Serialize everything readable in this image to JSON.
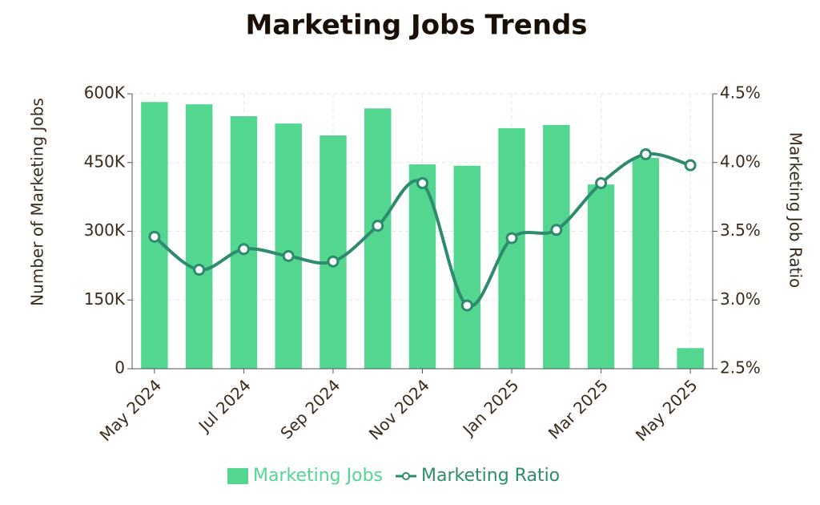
{
  "chart_data": {
    "type": "bar-line",
    "title": "Marketing Jobs Trends",
    "categories": [
      "May 2024",
      null,
      "Jul 2024",
      null,
      "Sep 2024",
      null,
      "Nov 2024",
      null,
      "Jan 2025",
      null,
      "Mar 2025",
      null,
      "May 2025"
    ],
    "series": [
      {
        "name": "Marketing Jobs",
        "type": "bar",
        "color": "#52d690",
        "values": [
          582000,
          577000,
          551000,
          535000,
          509000,
          568000,
          446000,
          443000,
          525000,
          532000,
          402000,
          460000,
          45000
        ]
      },
      {
        "name": "Marketing Ratio",
        "type": "line",
        "axis": "y2",
        "color": "#2e8b6e",
        "values": [
          3.46,
          3.22,
          3.37,
          3.32,
          3.28,
          3.54,
          3.85,
          2.96,
          3.45,
          3.51,
          3.85,
          4.06,
          3.98
        ]
      }
    ],
    "ylabel": "Number of Marketing Jobs",
    "y2label": "Marketing Job Ratio",
    "ylim": [
      0,
      600000
    ],
    "yticks": [
      0,
      {
        "value": 150000,
        "label": "150K"
      },
      {
        "value": 300000,
        "label": "300K"
      },
      {
        "value": 450000,
        "label": "450K"
      },
      {
        "value": 600000,
        "label": "600K"
      }
    ],
    "y2lim": [
      2.5,
      4.5
    ],
    "y2ticks": [
      {
        "value": 2.5,
        "label": "2.5%"
      },
      {
        "value": 3.0,
        "label": "3.0%"
      },
      {
        "value": 3.5,
        "label": "3.5%"
      },
      {
        "value": 4.0,
        "label": "4.0%"
      },
      {
        "value": 4.5,
        "label": "4.5%"
      }
    ],
    "grid": true,
    "legend": "bottom"
  }
}
